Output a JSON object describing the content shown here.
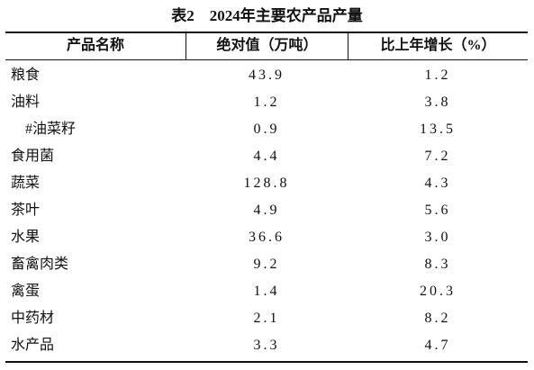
{
  "title": "表2　2024年主要农产品产量",
  "table": {
    "header": [
      "产品名称",
      "绝对值（万吨）",
      "比上年增长（%）"
    ],
    "rows": [
      [
        "粮食",
        "43.9",
        "1.2"
      ],
      [
        "油料",
        "1.2",
        "3.8"
      ],
      [
        "#油菜籽",
        "0.9",
        "13.5"
      ],
      [
        "食用菌",
        "4.4",
        "7.2"
      ],
      [
        "蔬菜",
        "128.8",
        "4.3"
      ],
      [
        "茶叶",
        "4.9",
        "5.6"
      ],
      [
        "水果",
        "36.6",
        "3.0"
      ],
      [
        "畜禽肉类",
        "9.2",
        "8.3"
      ],
      [
        "禽蛋",
        "1.4",
        "20.3"
      ],
      [
        "中药材",
        "2.1",
        "8.2"
      ],
      [
        "水产品",
        "3.3",
        "4.7"
      ]
    ]
  }
}
